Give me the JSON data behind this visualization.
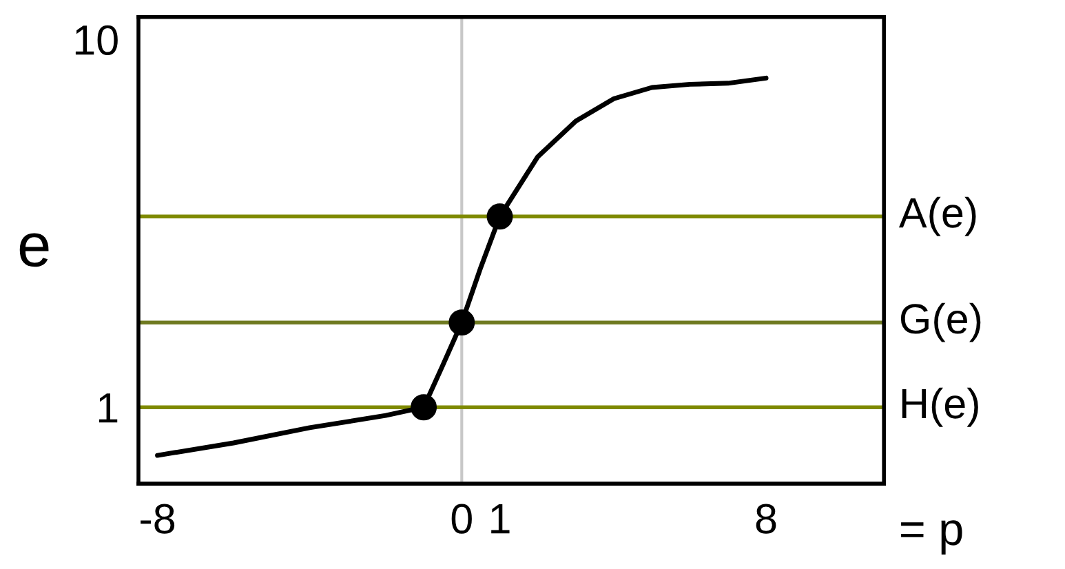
{
  "chart_data": {
    "type": "line",
    "xlabel": "= p",
    "ylabel": "e",
    "log": "y",
    "grid": false,
    "marker": "none",
    "xlim": [
      -8.5,
      11.1
    ],
    "xticks": [
      -8,
      0,
      1,
      8
    ],
    "ylim": [
      0.62,
      11.5
    ],
    "yticks": [
      1,
      10
    ],
    "series": [
      {
        "color": "#000000",
        "x": [
          -8,
          -6,
          -4,
          -2,
          -1,
          -0.5,
          0,
          0.5,
          1,
          2,
          3,
          4,
          5,
          6,
          7,
          8
        ],
        "values": [
          0.74,
          0.8,
          0.88,
          0.95,
          1.0,
          1.3,
          1.7,
          2.4,
          3.3,
          4.8,
          6.0,
          6.9,
          7.4,
          7.55,
          7.6,
          7.85
        ]
      },
      {
        "type": "scatter",
        "color": "#000000",
        "marker": "circle",
        "x": [
          -1,
          0,
          1
        ],
        "values": [
          1.0,
          1.7,
          3.3
        ]
      }
    ],
    "ref_lines": [
      {
        "axis": "x",
        "value": 0,
        "color": "#c8c8c8"
      },
      {
        "axis": "y",
        "value": 3.3,
        "label": "A(e)",
        "color": "#7f8a00"
      },
      {
        "axis": "y",
        "value": 1.7,
        "label": "G(e)",
        "color": "#6f7a20"
      },
      {
        "axis": "y",
        "value": 1.0,
        "label": "H(e)",
        "color": "#7f8a00"
      }
    ]
  }
}
